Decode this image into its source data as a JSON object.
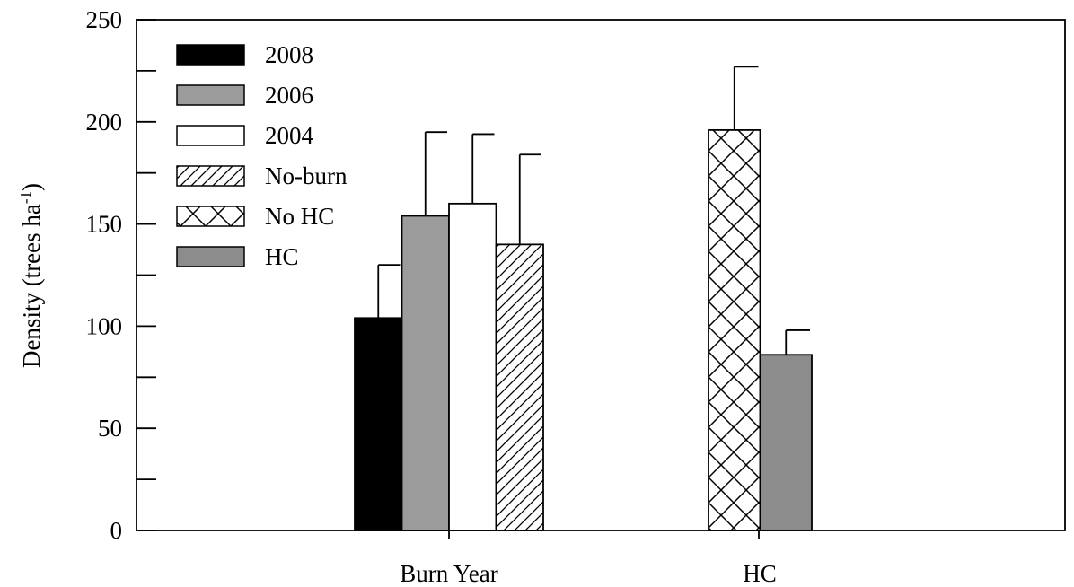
{
  "chart_data": {
    "type": "bar",
    "ylabel": "Density (trees ha",
    "ylabel_superscript": "-1",
    "ylabel_suffix": ")",
    "xlabel": "",
    "ylim": [
      0,
      250
    ],
    "yticks": [
      0,
      50,
      100,
      150,
      200,
      250
    ],
    "y_minor_ticks": [
      25,
      75,
      125,
      175,
      225
    ],
    "grid": false,
    "legend_position": "top-left",
    "groups": [
      {
        "category": "Burn Year",
        "bars": [
          {
            "series": "2008",
            "value": 104,
            "error": 26
          },
          {
            "series": "2006",
            "value": 154,
            "error": 41
          },
          {
            "series": "2004",
            "value": 160,
            "error": 34
          },
          {
            "series": "No-burn",
            "value": 140,
            "error": 44
          }
        ]
      },
      {
        "category": "HC",
        "bars": [
          {
            "series": "No HC",
            "value": 196,
            "error": 31
          },
          {
            "series": "HC",
            "value": 86,
            "error": 12
          }
        ]
      }
    ],
    "series": [
      {
        "name": "2008",
        "style": "solid-black",
        "color": "#000000"
      },
      {
        "name": "2006",
        "style": "solid-gray",
        "color": "#9b9b9b"
      },
      {
        "name": "2004",
        "style": "solid-white",
        "color": "#ffffff"
      },
      {
        "name": "No-burn",
        "style": "diagonal-hatch",
        "color": "#ffffff"
      },
      {
        "name": "No HC",
        "style": "crosshatch",
        "color": "#ffffff"
      },
      {
        "name": "HC",
        "style": "solid-darkgray",
        "color": "#8c8c8c"
      }
    ]
  }
}
